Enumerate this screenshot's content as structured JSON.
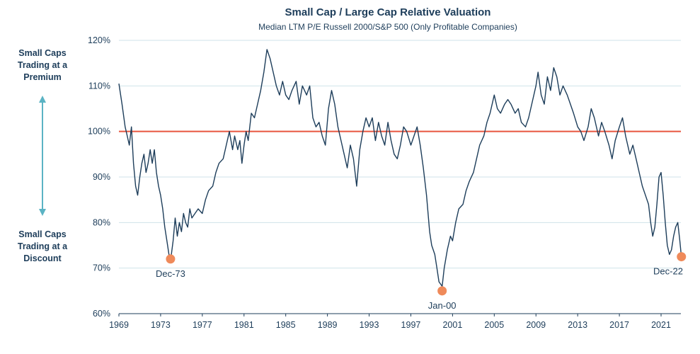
{
  "chart_data": {
    "type": "line",
    "title": "Small Cap / Large Cap Relative Valuation",
    "subtitle": "Median LTM P/E Russell 2000/S&P 500 (Only Profitable Companies)",
    "y_tick_labels": [
      "60%",
      "70%",
      "80%",
      "90%",
      "100%",
      "110%",
      "120%"
    ],
    "y_ticks": [
      60,
      70,
      80,
      90,
      100,
      110,
      120
    ],
    "ylim": [
      60,
      120
    ],
    "x_tick_labels": [
      "1969",
      "1973",
      "1977",
      "1981",
      "1985",
      "1989",
      "1993",
      "1997",
      "2001",
      "2005",
      "2009",
      "2013",
      "2017",
      "2021"
    ],
    "x_ticks": [
      1969,
      1973,
      1977,
      1981,
      1985,
      1989,
      1993,
      1997,
      2001,
      2005,
      2009,
      2013,
      2017,
      2021
    ],
    "xlim": [
      1969,
      2022.9
    ],
    "grid": true,
    "reference_line": {
      "value": 100,
      "color": "#e8553e"
    },
    "side_labels": {
      "premium": [
        "Small Caps",
        "Trading at a",
        "Premium"
      ],
      "discount": [
        "Small Caps",
        "Trading at a",
        "Discount"
      ]
    },
    "annotations": [
      {
        "label": "Dec-73",
        "x": 1973.95,
        "y": 72.0
      },
      {
        "label": "Jan-00",
        "x": 2000.0,
        "y": 65.0
      },
      {
        "label": "Dec-22",
        "x": 2022.95,
        "y": 72.5
      }
    ],
    "series": [
      {
        "color": "#1d3d5a",
        "points": [
          [
            1969.0,
            110.5
          ],
          [
            1969.3,
            106
          ],
          [
            1969.6,
            101
          ],
          [
            1969.8,
            99
          ],
          [
            1970.0,
            97
          ],
          [
            1970.2,
            101
          ],
          [
            1970.4,
            93
          ],
          [
            1970.6,
            88
          ],
          [
            1970.8,
            86
          ],
          [
            1971.0,
            90
          ],
          [
            1971.2,
            93
          ],
          [
            1971.4,
            95
          ],
          [
            1971.6,
            91
          ],
          [
            1971.8,
            93
          ],
          [
            1972.0,
            96
          ],
          [
            1972.2,
            93
          ],
          [
            1972.4,
            96
          ],
          [
            1972.6,
            91
          ],
          [
            1972.8,
            88
          ],
          [
            1973.0,
            86
          ],
          [
            1973.2,
            83
          ],
          [
            1973.4,
            79
          ],
          [
            1973.6,
            76
          ],
          [
            1973.8,
            73
          ],
          [
            1974.0,
            72.5
          ],
          [
            1974.2,
            76
          ],
          [
            1974.4,
            81
          ],
          [
            1974.6,
            77
          ],
          [
            1974.8,
            80
          ],
          [
            1975.0,
            78
          ],
          [
            1975.2,
            82
          ],
          [
            1975.4,
            80
          ],
          [
            1975.6,
            79
          ],
          [
            1975.8,
            83
          ],
          [
            1976.0,
            81
          ],
          [
            1976.3,
            82
          ],
          [
            1976.6,
            83
          ],
          [
            1977.0,
            82
          ],
          [
            1977.3,
            85
          ],
          [
            1977.6,
            87
          ],
          [
            1978.0,
            88
          ],
          [
            1978.3,
            91
          ],
          [
            1978.6,
            93
          ],
          [
            1979.0,
            94
          ],
          [
            1979.3,
            97
          ],
          [
            1979.6,
            100
          ],
          [
            1979.9,
            96
          ],
          [
            1980.1,
            99
          ],
          [
            1980.4,
            96
          ],
          [
            1980.6,
            98
          ],
          [
            1980.8,
            93
          ],
          [
            1981.0,
            97
          ],
          [
            1981.2,
            100
          ],
          [
            1981.4,
            98
          ],
          [
            1981.7,
            104
          ],
          [
            1982.0,
            103
          ],
          [
            1982.3,
            106
          ],
          [
            1982.6,
            109
          ],
          [
            1982.9,
            113
          ],
          [
            1983.2,
            118
          ],
          [
            1983.5,
            116
          ],
          [
            1983.8,
            113
          ],
          [
            1984.1,
            110
          ],
          [
            1984.4,
            108
          ],
          [
            1984.7,
            111
          ],
          [
            1985.0,
            108
          ],
          [
            1985.3,
            107
          ],
          [
            1985.6,
            109
          ],
          [
            1986.0,
            111
          ],
          [
            1986.3,
            106
          ],
          [
            1986.6,
            110
          ],
          [
            1987.0,
            108
          ],
          [
            1987.3,
            110
          ],
          [
            1987.6,
            103
          ],
          [
            1987.9,
            101
          ],
          [
            1988.2,
            102
          ],
          [
            1988.5,
            99
          ],
          [
            1988.8,
            97
          ],
          [
            1989.1,
            105
          ],
          [
            1989.4,
            109
          ],
          [
            1989.7,
            106
          ],
          [
            1990.0,
            101
          ],
          [
            1990.3,
            98
          ],
          [
            1990.6,
            95
          ],
          [
            1990.9,
            92
          ],
          [
            1991.2,
            97
          ],
          [
            1991.5,
            94
          ],
          [
            1991.8,
            88
          ],
          [
            1992.1,
            96
          ],
          [
            1992.4,
            100
          ],
          [
            1992.7,
            103
          ],
          [
            1993.0,
            101
          ],
          [
            1993.3,
            103
          ],
          [
            1993.6,
            98
          ],
          [
            1993.9,
            102
          ],
          [
            1994.2,
            99
          ],
          [
            1994.5,
            97
          ],
          [
            1994.8,
            102
          ],
          [
            1995.1,
            98
          ],
          [
            1995.4,
            95
          ],
          [
            1995.7,
            94
          ],
          [
            1996.0,
            97
          ],
          [
            1996.3,
            101
          ],
          [
            1996.6,
            100
          ],
          [
            1997.0,
            97
          ],
          [
            1997.3,
            99
          ],
          [
            1997.6,
            101
          ],
          [
            1997.9,
            97
          ],
          [
            1998.2,
            92
          ],
          [
            1998.5,
            86
          ],
          [
            1998.8,
            78
          ],
          [
            1999.0,
            75
          ],
          [
            1999.3,
            73
          ],
          [
            1999.5,
            70
          ],
          [
            1999.7,
            67
          ],
          [
            2000.0,
            66
          ],
          [
            2000.2,
            70
          ],
          [
            2000.5,
            74
          ],
          [
            2000.8,
            77
          ],
          [
            2001.0,
            76
          ],
          [
            2001.3,
            80
          ],
          [
            2001.6,
            83
          ],
          [
            2002.0,
            84
          ],
          [
            2002.3,
            87
          ],
          [
            2002.6,
            89
          ],
          [
            2003.0,
            91
          ],
          [
            2003.3,
            94
          ],
          [
            2003.6,
            97
          ],
          [
            2004.0,
            99
          ],
          [
            2004.3,
            102
          ],
          [
            2004.6,
            104
          ],
          [
            2005.0,
            108
          ],
          [
            2005.3,
            105
          ],
          [
            2005.6,
            104
          ],
          [
            2006.0,
            106
          ],
          [
            2006.3,
            107
          ],
          [
            2006.6,
            106
          ],
          [
            2007.0,
            104
          ],
          [
            2007.3,
            105
          ],
          [
            2007.6,
            102
          ],
          [
            2008.0,
            101
          ],
          [
            2008.3,
            103
          ],
          [
            2008.6,
            106
          ],
          [
            2009.0,
            110
          ],
          [
            2009.2,
            113
          ],
          [
            2009.5,
            108
          ],
          [
            2009.8,
            106
          ],
          [
            2010.1,
            112
          ],
          [
            2010.4,
            109
          ],
          [
            2010.7,
            114
          ],
          [
            2011.0,
            112
          ],
          [
            2011.3,
            108
          ],
          [
            2011.6,
            110
          ],
          [
            2012.0,
            108
          ],
          [
            2012.3,
            106
          ],
          [
            2012.6,
            104
          ],
          [
            2013.0,
            101
          ],
          [
            2013.3,
            100
          ],
          [
            2013.6,
            98
          ],
          [
            2014.0,
            101
          ],
          [
            2014.3,
            105
          ],
          [
            2014.6,
            103
          ],
          [
            2015.0,
            99
          ],
          [
            2015.3,
            102
          ],
          [
            2015.6,
            100
          ],
          [
            2016.0,
            97
          ],
          [
            2016.3,
            94
          ],
          [
            2016.6,
            98
          ],
          [
            2017.0,
            101
          ],
          [
            2017.3,
            103
          ],
          [
            2017.6,
            99
          ],
          [
            2018.0,
            95
          ],
          [
            2018.3,
            97
          ],
          [
            2018.6,
            94
          ],
          [
            2018.9,
            91
          ],
          [
            2019.2,
            88
          ],
          [
            2019.5,
            86
          ],
          [
            2019.8,
            84
          ],
          [
            2020.0,
            80
          ],
          [
            2020.2,
            77
          ],
          [
            2020.4,
            79
          ],
          [
            2020.6,
            84
          ],
          [
            2020.8,
            90
          ],
          [
            2021.0,
            91
          ],
          [
            2021.2,
            86
          ],
          [
            2021.4,
            80
          ],
          [
            2021.6,
            75
          ],
          [
            2021.8,
            73
          ],
          [
            2022.0,
            74
          ],
          [
            2022.2,
            77
          ],
          [
            2022.4,
            79
          ],
          [
            2022.6,
            80
          ],
          [
            2022.8,
            76
          ],
          [
            2022.95,
            72.5
          ]
        ]
      }
    ]
  }
}
